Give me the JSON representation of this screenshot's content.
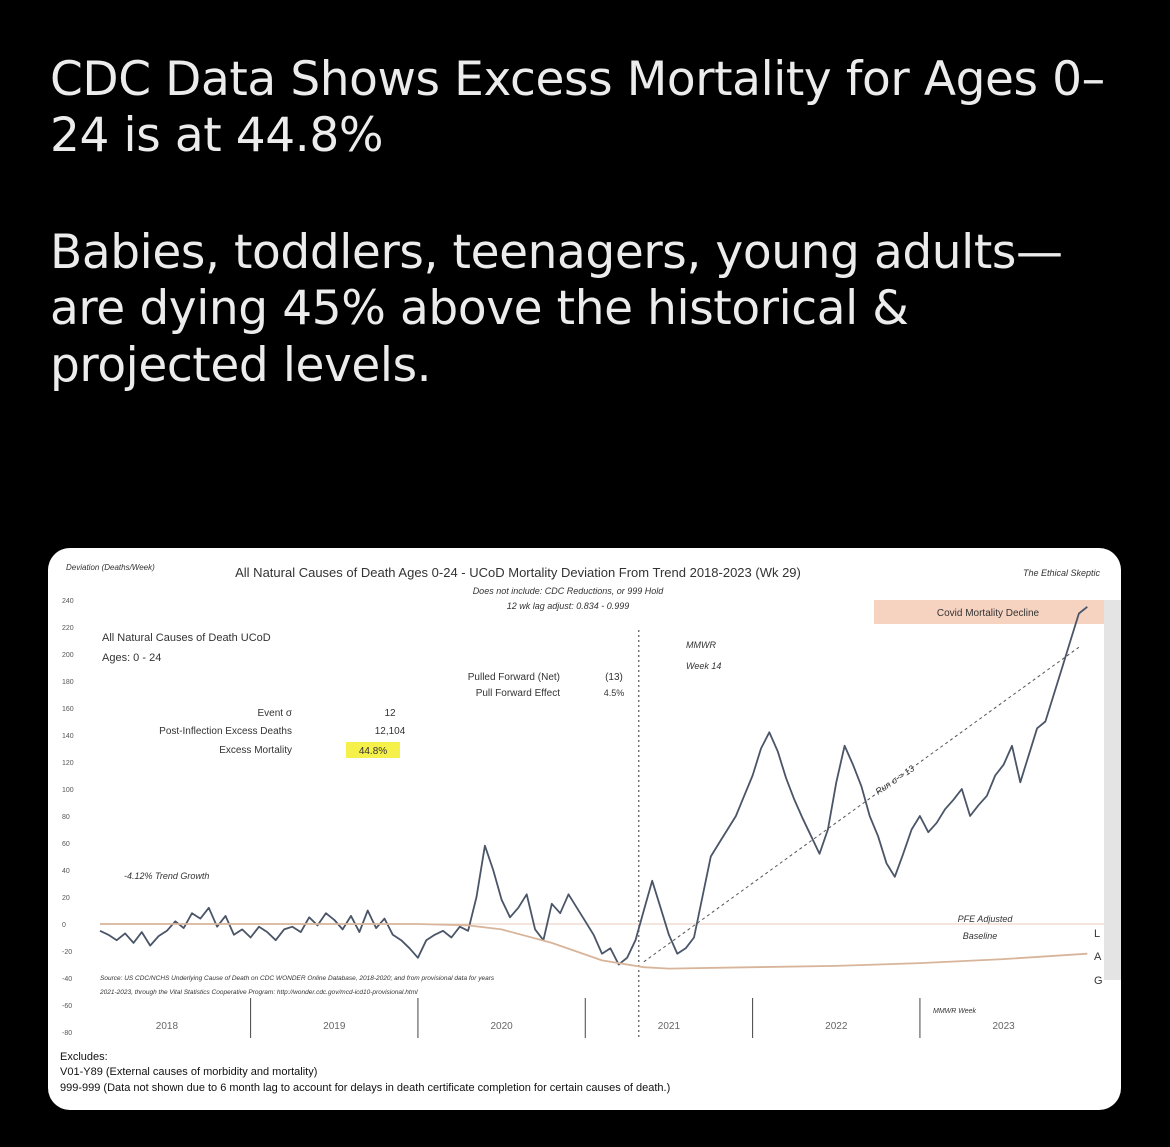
{
  "post": {
    "headline": "CDC Data Shows Excess Mortality for Ages 0–24 is at 44.8%",
    "body": "Babies, toddlers, teenagers, young adults—are dying 45% above the historical & projected levels."
  },
  "chart_data": {
    "type": "line",
    "title": "All Natural Causes of Death Ages 0-24 - UCoD Mortality Deviation From Trend 2018-2023 (Wk 29)",
    "subtitle_lines": [
      "Does not include: CDC Reductions, or 999 Hold",
      "12 wk lag adjust: 0.834 - 0.999"
    ],
    "ylabel": "Deviation (Deaths/Week)",
    "watermark": "The Ethical Skeptic",
    "ylim": [
      -80,
      240
    ],
    "yticks": [
      240,
      220,
      200,
      180,
      160,
      140,
      120,
      100,
      80,
      60,
      40,
      20,
      0,
      -20,
      -40,
      -60,
      -80
    ],
    "xlim": [
      2017.6,
      2023.6
    ],
    "x_labels": [
      {
        "x": 2018.0,
        "label": "2018"
      },
      {
        "x": 2019.0,
        "label": "2019"
      },
      {
        "x": 2020.0,
        "label": "2020"
      },
      {
        "x": 2021.0,
        "label": "2021"
      },
      {
        "x": 2022.0,
        "label": "2022"
      },
      {
        "x": 2023.0,
        "label": "2023"
      }
    ],
    "year_dividers": [
      2018.5,
      2019.5,
      2020.5,
      2021.5,
      2022.5
    ],
    "mmwr_axis_label": "MMWR Week",
    "series": [
      {
        "color": "#4a5568",
        "x": [
          2017.6,
          2017.65,
          2017.7,
          2017.75,
          2017.8,
          2017.85,
          2017.9,
          2017.95,
          2018.0,
          2018.05,
          2018.1,
          2018.15,
          2018.2,
          2018.25,
          2018.3,
          2018.35,
          2018.4,
          2018.45,
          2018.5,
          2018.55,
          2018.6,
          2018.65,
          2018.7,
          2018.75,
          2018.8,
          2018.85,
          2018.9,
          2018.95,
          2019.0,
          2019.05,
          2019.1,
          2019.15,
          2019.2,
          2019.25,
          2019.3,
          2019.35,
          2019.4,
          2019.45,
          2019.5,
          2019.55,
          2019.6,
          2019.65,
          2019.7,
          2019.75,
          2019.8,
          2019.85,
          2019.9,
          2019.95,
          2020.0,
          2020.05,
          2020.1,
          2020.15,
          2020.2,
          2020.25,
          2020.3,
          2020.35,
          2020.4,
          2020.45,
          2020.5,
          2020.55,
          2020.6,
          2020.65,
          2020.7,
          2020.75,
          2020.8,
          2020.85,
          2020.9,
          2020.95,
          2021.0,
          2021.05,
          2021.1,
          2021.15,
          2021.2,
          2021.25,
          2021.3,
          2021.35,
          2021.4,
          2021.45,
          2021.5,
          2021.55,
          2021.6,
          2021.65,
          2021.7,
          2021.75,
          2021.8,
          2021.85,
          2021.9,
          2021.95,
          2022.0,
          2022.05,
          2022.1,
          2022.15,
          2022.2,
          2022.25,
          2022.3,
          2022.35,
          2022.4,
          2022.45,
          2022.5,
          2022.55,
          2022.6,
          2022.65,
          2022.7,
          2022.75,
          2022.8,
          2022.85,
          2022.9,
          2022.95,
          2023.0,
          2023.05,
          2023.1,
          2023.15,
          2023.2,
          2023.25,
          2023.3,
          2023.35,
          2023.4,
          2023.45,
          2023.5
        ],
        "values": [
          -5,
          -8,
          -12,
          -7,
          -14,
          -6,
          -16,
          -9,
          -5,
          2,
          -3,
          8,
          4,
          12,
          -2,
          6,
          -8,
          -4,
          -10,
          -2,
          -6,
          -12,
          -4,
          -2,
          -6,
          5,
          -1,
          8,
          3,
          -4,
          6,
          -6,
          10,
          -3,
          4,
          -8,
          -12,
          -18,
          -25,
          -12,
          -8,
          -5,
          -10,
          -2,
          -5,
          20,
          58,
          40,
          18,
          5,
          12,
          22,
          -4,
          -12,
          15,
          8,
          22,
          12,
          2,
          -8,
          -22,
          -18,
          -30,
          -25,
          -12,
          10,
          32,
          12,
          -8,
          -22,
          -18,
          -10,
          20,
          50,
          60,
          70,
          80,
          95,
          110,
          130,
          142,
          128,
          108,
          92,
          78,
          65,
          52,
          70,
          105,
          132,
          118,
          102,
          80,
          65,
          45,
          35,
          52,
          70,
          80,
          68,
          75,
          85,
          92,
          100,
          80,
          88,
          95,
          110,
          118,
          132,
          105,
          125,
          145,
          150,
          170,
          190,
          210,
          230,
          235
        ],
        "width": 1.8
      },
      {
        "color": "#d8b59a",
        "x": [
          2017.6,
          2018.0,
          2018.5,
          2019.0,
          2019.5,
          2019.8,
          2020.0,
          2020.3,
          2020.6,
          2020.85,
          2021.0,
          2021.5,
          2022.0,
          2022.5,
          2023.0,
          2023.5
        ],
        "values": [
          0,
          0,
          0,
          0,
          0,
          -1,
          -4,
          -14,
          -27,
          -32,
          -33,
          -32,
          -31,
          -29,
          -26,
          -22
        ],
        "width": 1.8
      }
    ],
    "trend_line": {
      "x": [
        2020.85,
        2023.45
      ],
      "values": [
        -28,
        205
      ],
      "color": "#555555"
    },
    "trend_line_label": "Run σ = 13",
    "event_line_x": 2020.82,
    "event_line_labels": [
      "MMWR",
      "Week 14"
    ],
    "annotations": {
      "box_title_1": "All Natural Causes of Death UCoD",
      "box_title_2": "Ages: 0 - 24",
      "event_label": "Event σ",
      "event_value": "12",
      "excess_deaths_label": "Post-Inflection Excess Deaths",
      "excess_deaths_value": "12,104",
      "excess_mortality_label": "Excess Mortality",
      "excess_mortality_value": "44.8%",
      "pulled_forward_label": "Pulled Forward (Net)",
      "pulled_forward_value": "(13)",
      "pull_forward_effect_label": "Pull Forward Effect",
      "pull_forward_effect_value": "4.5%",
      "trend_growth": "-4.12% Trend Growth",
      "covid_decline": "Covid Mortality Decline",
      "pfe_label_1": "PFE Adjusted",
      "pfe_label_2": "Baseline",
      "lag_letters": [
        "L",
        "A",
        "G"
      ],
      "source_line_1": "Source: US CDC/NCHS Underlying Cause of Death on CDC WONDER Online Database, 2018-2020; and from provisional data for years",
      "source_line_2": "2021-2023, through the Vital Statistics Cooperative Program: http://wonder.cdc.gov/mcd-icd10-provisional.html"
    },
    "excludes_title": "Excludes:",
    "excludes_lines": [
      "V01-Y89 (External causes of morbidity and mortality)",
      "999-999 (Data not shown due to 6 month lag to account for delays in death certificate completion for certain causes of death.)"
    ],
    "colors": {
      "highlight": "#f5f04a",
      "covid_band": "#f6d3c0"
    }
  }
}
